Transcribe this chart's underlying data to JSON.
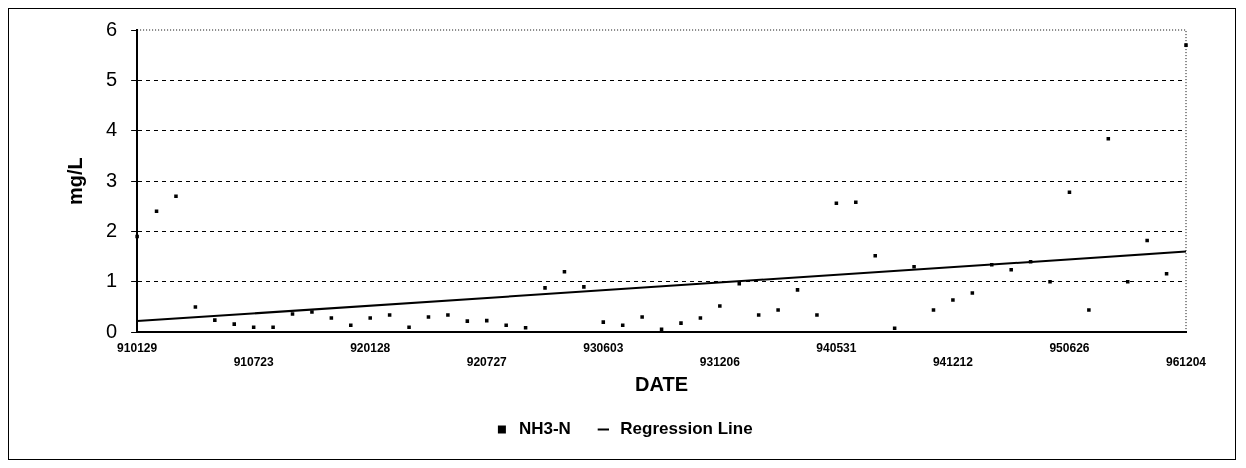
{
  "chart_data": {
    "type": "scatter",
    "xlabel": "DATE",
    "ylabel": "mg/L",
    "categories": [
      "910129",
      null,
      null,
      null,
      null,
      null,
      "910723",
      null,
      null,
      null,
      null,
      null,
      "920128",
      null,
      null,
      null,
      null,
      null,
      "920727",
      null,
      null,
      null,
      null,
      null,
      "930603",
      null,
      null,
      null,
      null,
      null,
      "931206",
      null,
      null,
      null,
      null,
      null,
      "940531",
      null,
      null,
      null,
      null,
      null,
      "941212",
      null,
      null,
      null,
      null,
      null,
      "950626",
      null,
      null,
      null,
      null,
      null,
      "961204"
    ],
    "series": [
      {
        "name": "NH3-N",
        "marker": "square",
        "color": "#000000",
        "values": [
          1.9,
          2.4,
          2.7,
          0.5,
          0.24,
          0.16,
          0.1,
          0.1,
          0.36,
          0.4,
          0.28,
          0.14,
          0.28,
          0.34,
          0.1,
          0.3,
          0.34,
          0.22,
          0.23,
          0.14,
          0.09,
          0.88,
          1.2,
          0.9,
          0.2,
          0.14,
          0.3,
          0.06,
          0.18,
          0.28,
          0.52,
          0.96,
          0.34,
          0.44,
          0.84,
          0.34,
          2.56,
          2.58,
          1.52,
          0.08,
          1.3,
          0.44,
          0.64,
          0.78,
          1.34,
          1.24,
          1.4,
          1.0,
          2.78,
          0.44,
          3.84,
          1.0,
          1.82,
          1.16,
          5.7
        ]
      },
      {
        "name": "Regression Line",
        "type": "line",
        "color": "#000000",
        "values": [
          0.22,
          null,
          null,
          null,
          null,
          null,
          null,
          null,
          null,
          null,
          null,
          null,
          null,
          null,
          null,
          null,
          null,
          null,
          null,
          null,
          null,
          null,
          null,
          null,
          null,
          null,
          null,
          null,
          null,
          null,
          null,
          null,
          null,
          null,
          null,
          null,
          null,
          null,
          null,
          null,
          null,
          null,
          null,
          null,
          null,
          null,
          null,
          null,
          null,
          null,
          null,
          null,
          null,
          null,
          1.6
        ]
      }
    ],
    "ylim": [
      0,
      6
    ],
    "yticks": [
      0,
      1,
      2,
      3,
      4,
      5,
      6
    ],
    "grid": "y",
    "legend": "bottom",
    "line_style": "solid"
  }
}
